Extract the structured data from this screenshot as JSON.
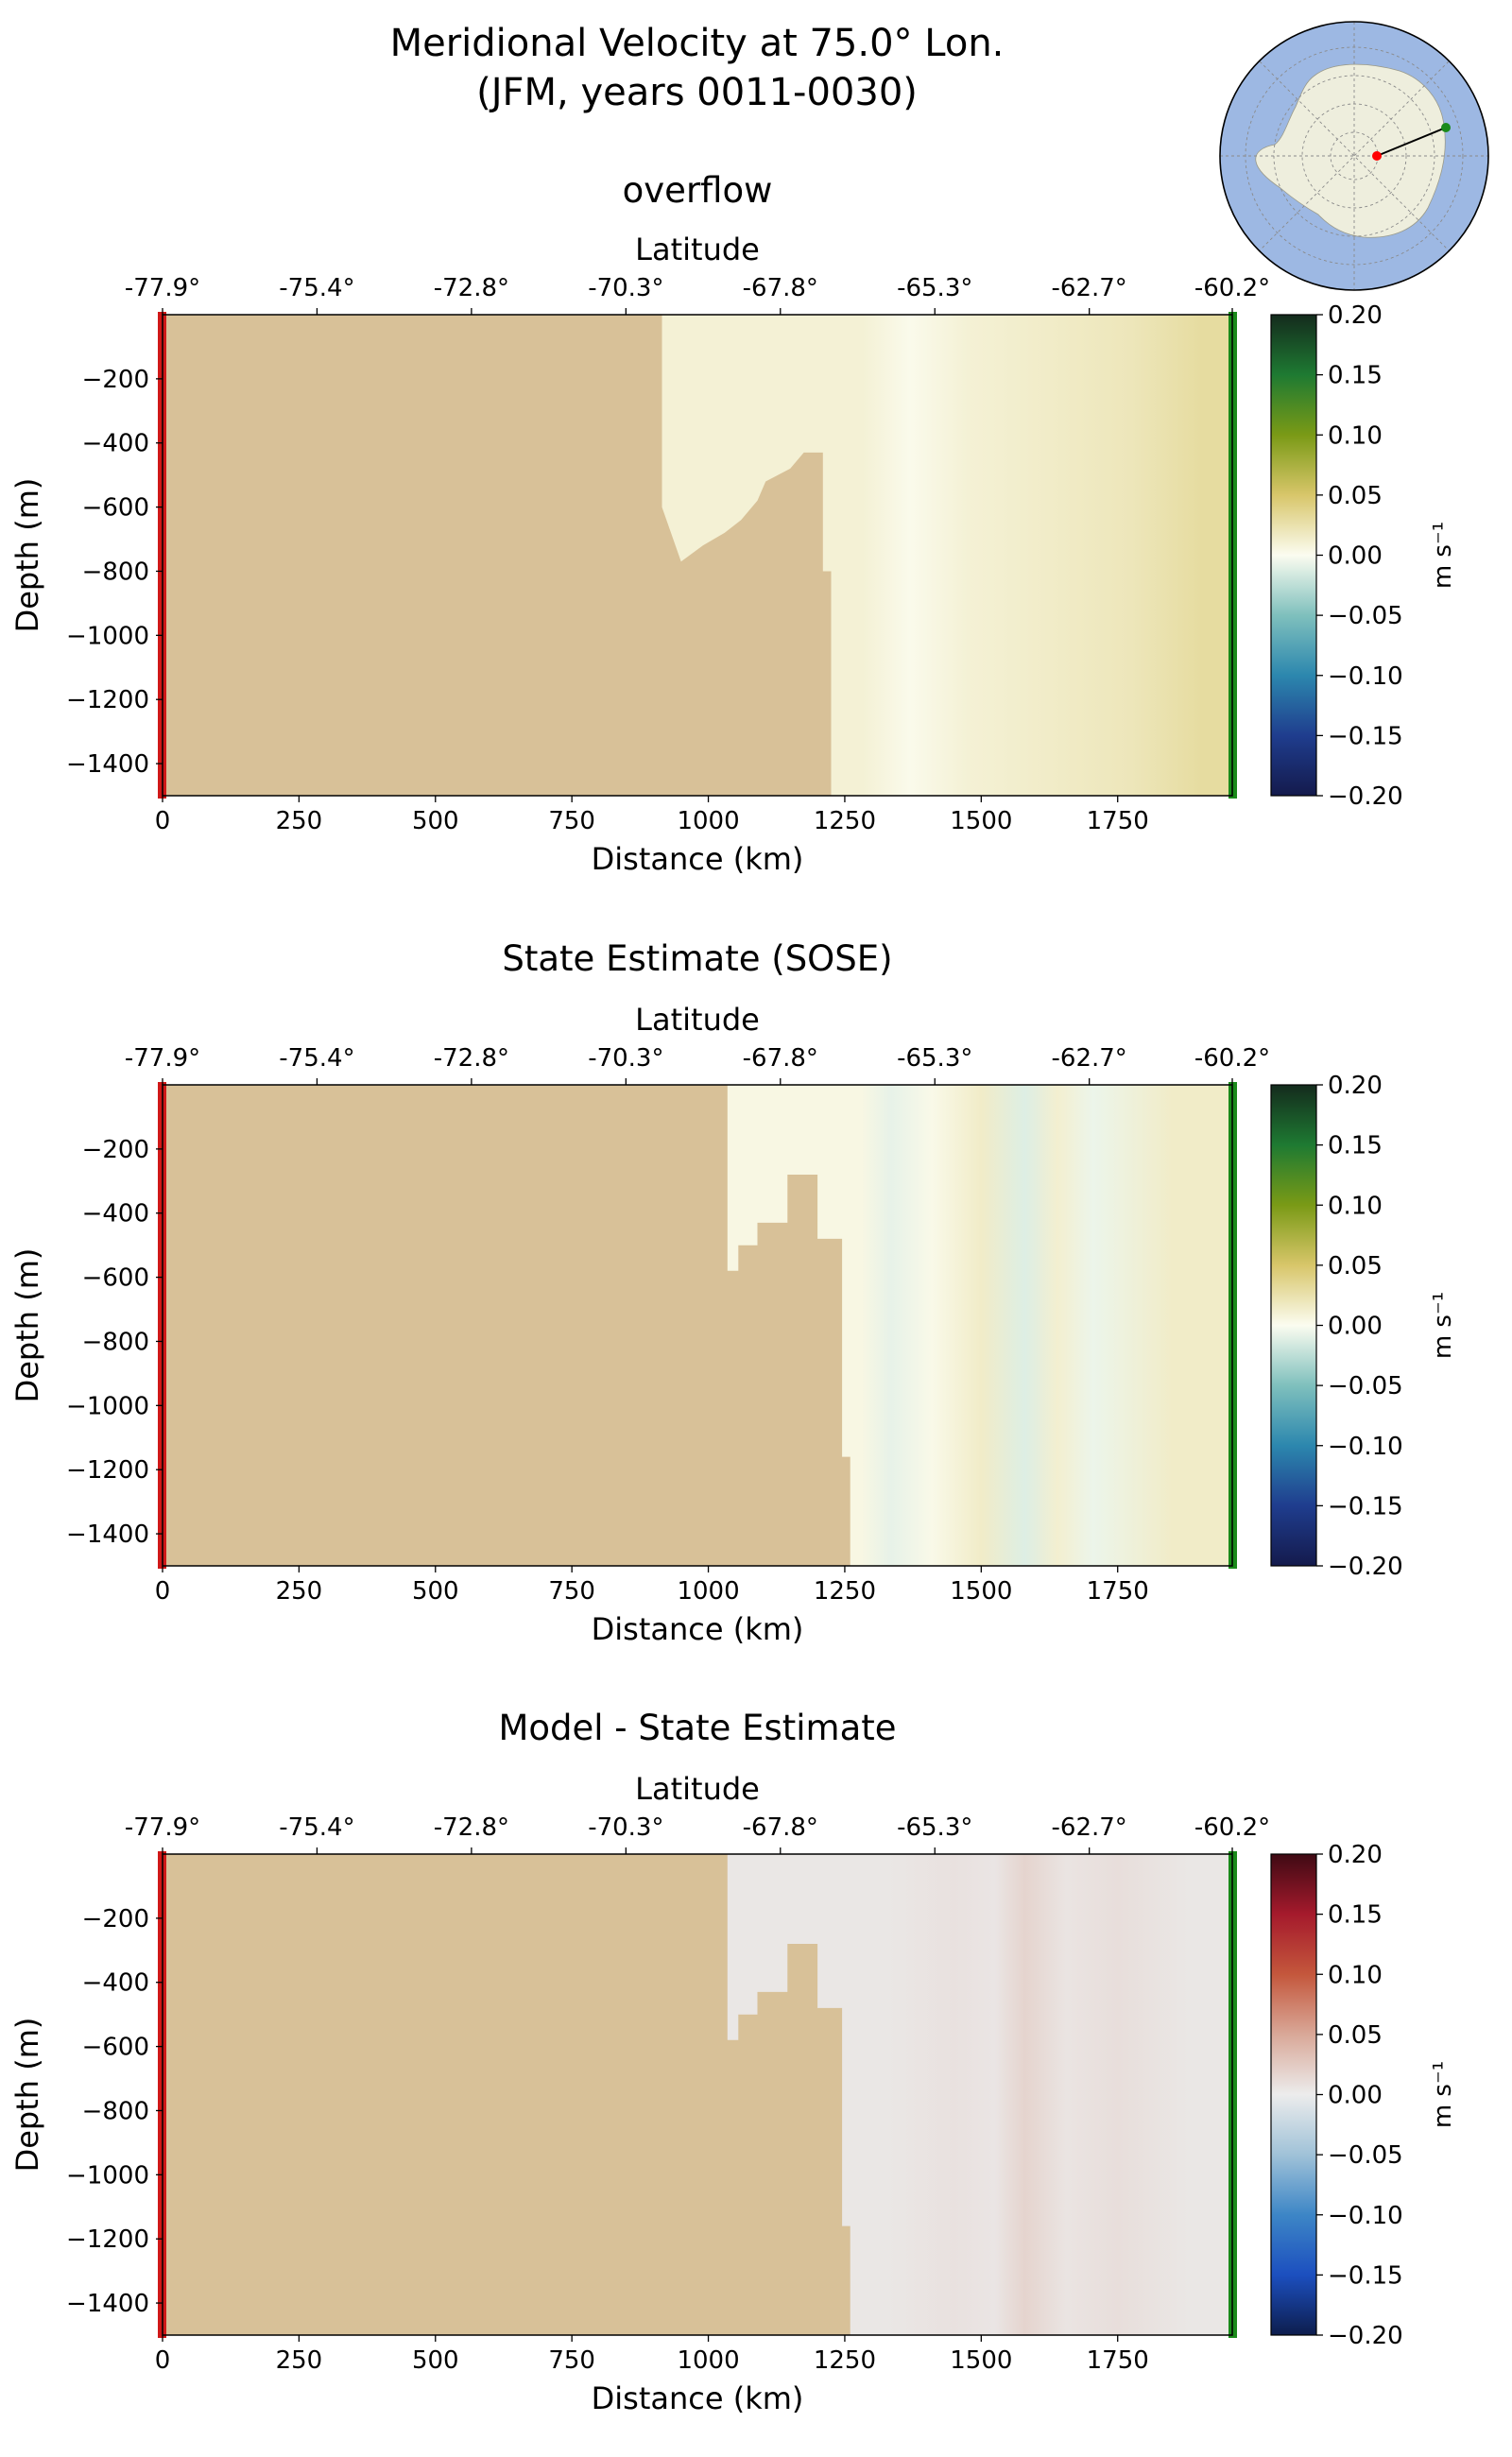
{
  "figure": {
    "title_line1": "Meridional Velocity at 75.0° Lon.",
    "title_line2": "(JFM, years 0011-0030)"
  },
  "colors": {
    "land": "#d8c198",
    "start_marker": "#d01818",
    "end_marker": "#1a8a1a",
    "inset_ocean": "#9db8e3",
    "inset_land": "#eeeedd",
    "inset_line": "#000000",
    "inset_start_point": "#ff0000",
    "inset_end_point": "#1a8a1a"
  },
  "chart_data": [
    {
      "type": "heatmap",
      "title": "overflow",
      "xlabel": "Distance (km)",
      "ylabel": "Depth (m)",
      "top_xlabel": "Latitude",
      "xlim": [
        0,
        1960
      ],
      "ylim": [
        -1500,
        0
      ],
      "xticks": [
        0,
        250,
        500,
        750,
        1000,
        1250,
        1500,
        1750
      ],
      "yticks": [
        -200,
        -400,
        -600,
        -800,
        -1000,
        -1200,
        -1400
      ],
      "top_ticks": {
        "values": [
          0,
          283,
          566,
          849,
          1132,
          1415,
          1698,
          1960
        ],
        "labels": [
          "-77.9°",
          "-75.4°",
          "-72.8°",
          "-70.3°",
          "-67.8°",
          "-65.3°",
          "-62.7°",
          "-60.2°"
        ]
      },
      "colorbar": {
        "label": "m s⁻¹",
        "range": [
          -0.2,
          0.2
        ],
        "ticks": [
          0.2,
          0.15,
          0.1,
          0.05,
          0.0,
          -0.05,
          -0.1,
          -0.15,
          -0.2
        ],
        "tick_labels": [
          "0.20",
          "0.15",
          "0.10",
          "0.05",
          "0.00",
          "−0.05",
          "−0.10",
          "−0.15",
          "−0.20"
        ],
        "colormap": "diverging_yellow_green_blue"
      },
      "bathymetry": [
        [
          0,
          -1500
        ],
        [
          0,
          0
        ],
        [
          915,
          0
        ],
        [
          915,
          -600
        ],
        [
          950,
          -770
        ],
        [
          990,
          -720
        ],
        [
          1030,
          -680
        ],
        [
          1060,
          -640
        ],
        [
          1090,
          -580
        ],
        [
          1105,
          -520
        ],
        [
          1150,
          -480
        ],
        [
          1175,
          -430
        ],
        [
          1210,
          -430
        ],
        [
          1210,
          -800
        ],
        [
          1225,
          -800
        ],
        [
          1225,
          -1500
        ]
      ],
      "velocity_columns": [
        {
          "x": [
            1225,
            1340
          ],
          "v": 0.01
        },
        {
          "x": [
            1340,
            1400
          ],
          "v": 0.002
        },
        {
          "x": [
            1400,
            1550
          ],
          "v": 0.01
        },
        {
          "x": [
            1550,
            1700
          ],
          "v": 0.015
        },
        {
          "x": [
            1700,
            1850
          ],
          "v": 0.02
        },
        {
          "x": [
            1850,
            1960
          ],
          "v": 0.03
        }
      ]
    },
    {
      "type": "heatmap",
      "title": "State Estimate (SOSE)",
      "xlabel": "Distance (km)",
      "ylabel": "Depth (m)",
      "top_xlabel": "Latitude",
      "xlim": [
        0,
        1960
      ],
      "ylim": [
        -1500,
        0
      ],
      "xticks": [
        0,
        250,
        500,
        750,
        1000,
        1250,
        1500,
        1750
      ],
      "yticks": [
        -200,
        -400,
        -600,
        -800,
        -1000,
        -1200,
        -1400
      ],
      "top_ticks": {
        "values": [
          0,
          283,
          566,
          849,
          1132,
          1415,
          1698,
          1960
        ],
        "labels": [
          "-77.9°",
          "-75.4°",
          "-72.8°",
          "-70.3°",
          "-67.8°",
          "-65.3°",
          "-62.7°",
          "-60.2°"
        ]
      },
      "colorbar": {
        "label": "m s⁻¹",
        "range": [
          -0.2,
          0.2
        ],
        "ticks": [
          0.2,
          0.15,
          0.1,
          0.05,
          0.0,
          -0.05,
          -0.1,
          -0.15,
          -0.2
        ],
        "tick_labels": [
          "0.20",
          "0.15",
          "0.10",
          "0.05",
          "0.00",
          "−0.05",
          "−0.10",
          "−0.15",
          "−0.20"
        ],
        "colormap": "diverging_yellow_green_blue"
      },
      "bathymetry": [
        [
          0,
          -1500
        ],
        [
          0,
          0
        ],
        [
          1035,
          0
        ],
        [
          1035,
          -580
        ],
        [
          1055,
          -580
        ],
        [
          1055,
          -500
        ],
        [
          1090,
          -500
        ],
        [
          1090,
          -430
        ],
        [
          1145,
          -430
        ],
        [
          1145,
          -280
        ],
        [
          1200,
          -280
        ],
        [
          1200,
          -480
        ],
        [
          1245,
          -480
        ],
        [
          1245,
          -1160
        ],
        [
          1260,
          -1160
        ],
        [
          1260,
          -1500
        ]
      ],
      "velocity_columns": [
        {
          "x": [
            1260,
            1300
          ],
          "v": 0.005
        },
        {
          "x": [
            1300,
            1370
          ],
          "v": -0.008
        },
        {
          "x": [
            1370,
            1450
          ],
          "v": 0.003
        },
        {
          "x": [
            1450,
            1550
          ],
          "v": 0.015
        },
        {
          "x": [
            1550,
            1610
          ],
          "v": -0.012
        },
        {
          "x": [
            1610,
            1670
          ],
          "v": 0.012
        },
        {
          "x": [
            1670,
            1740
          ],
          "v": -0.006
        },
        {
          "x": [
            1740,
            1960
          ],
          "v": 0.015
        }
      ]
    },
    {
      "type": "heatmap",
      "title": "Model - State Estimate",
      "xlabel": "Distance (km)",
      "ylabel": "Depth (m)",
      "top_xlabel": "Latitude",
      "xlim": [
        0,
        1960
      ],
      "ylim": [
        -1500,
        0
      ],
      "xticks": [
        0,
        250,
        500,
        750,
        1000,
        1250,
        1500,
        1750
      ],
      "yticks": [
        -200,
        -400,
        -600,
        -800,
        -1000,
        -1200,
        -1400
      ],
      "top_ticks": {
        "values": [
          0,
          283,
          566,
          849,
          1132,
          1415,
          1698,
          1960
        ],
        "labels": [
          "-77.9°",
          "-75.4°",
          "-72.8°",
          "-70.3°",
          "-67.8°",
          "-65.3°",
          "-62.7°",
          "-60.2°"
        ]
      },
      "colorbar": {
        "label": "m s⁻¹",
        "range": [
          -0.2,
          0.2
        ],
        "ticks": [
          0.2,
          0.15,
          0.1,
          0.05,
          0.0,
          -0.05,
          -0.1,
          -0.15,
          -0.2
        ],
        "tick_labels": [
          "0.20",
          "0.15",
          "0.10",
          "0.05",
          "0.00",
          "−0.05",
          "−0.10",
          "−0.15",
          "−0.20"
        ],
        "colormap": "diverging_red_blue"
      },
      "bathymetry": [
        [
          0,
          -1500
        ],
        [
          0,
          0
        ],
        [
          1035,
          0
        ],
        [
          1035,
          -580
        ],
        [
          1055,
          -580
        ],
        [
          1055,
          -500
        ],
        [
          1090,
          -500
        ],
        [
          1090,
          -430
        ],
        [
          1145,
          -430
        ],
        [
          1145,
          -280
        ],
        [
          1200,
          -280
        ],
        [
          1200,
          -480
        ],
        [
          1245,
          -480
        ],
        [
          1245,
          -1160
        ],
        [
          1260,
          -1160
        ],
        [
          1260,
          -1500
        ]
      ],
      "velocity_columns": [
        {
          "x": [
            1260,
            1400
          ],
          "v": 0.004
        },
        {
          "x": [
            1400,
            1500
          ],
          "v": 0.008
        },
        {
          "x": [
            1500,
            1550
          ],
          "v": 0.005
        },
        {
          "x": [
            1550,
            1610
          ],
          "v": 0.018
        },
        {
          "x": [
            1610,
            1700
          ],
          "v": 0.006
        },
        {
          "x": [
            1700,
            1800
          ],
          "v": 0.01
        },
        {
          "x": [
            1800,
            1960
          ],
          "v": 0.004
        }
      ]
    }
  ]
}
